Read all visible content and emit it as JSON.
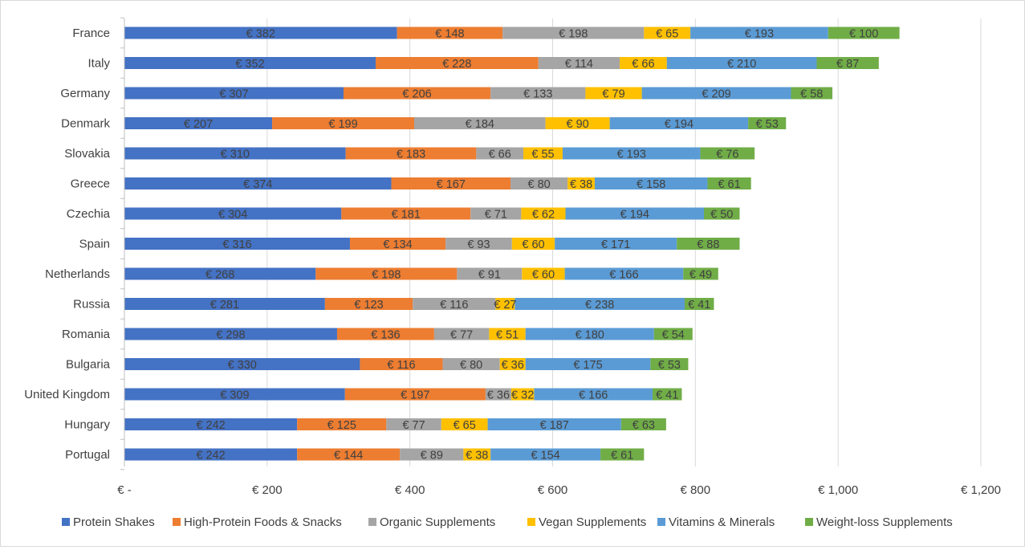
{
  "chart_data": {
    "type": "bar",
    "orientation": "horizontal",
    "stacked": true,
    "title": "",
    "xlabel": "",
    "ylabel": "",
    "categories": [
      "France",
      "Italy",
      "Germany",
      "Denmark",
      "Slovakia",
      "Greece",
      "Czechia",
      "Spain",
      "Netherlands",
      "Russia",
      "Romania",
      "Bulgaria",
      "United Kingdom",
      "Hungary",
      "Portugal"
    ],
    "series": [
      {
        "name": "Protein Shakes",
        "color": "#4472c4",
        "values": [
          382,
          352,
          307,
          207,
          310,
          374,
          304,
          316,
          268,
          281,
          298,
          330,
          309,
          242,
          242
        ]
      },
      {
        "name": "High-Protein Foods & Snacks",
        "color": "#ed7d31",
        "values": [
          148,
          228,
          206,
          199,
          183,
          167,
          181,
          134,
          198,
          123,
          136,
          116,
          197,
          125,
          144
        ]
      },
      {
        "name": "Organic Supplements",
        "color": "#a5a5a5",
        "values": [
          198,
          114,
          133,
          184,
          66,
          80,
          71,
          93,
          91,
          116,
          77,
          80,
          36,
          77,
          89
        ]
      },
      {
        "name": "Vegan Supplements",
        "color": "#ffc000",
        "values": [
          65,
          66,
          79,
          90,
          55,
          38,
          62,
          60,
          60,
          27,
          51,
          36,
          32,
          65,
          38
        ]
      },
      {
        "name": "Vitamins & Minerals",
        "color": "#5b9bd5",
        "values": [
          193,
          210,
          209,
          194,
          193,
          158,
          194,
          171,
          166,
          238,
          180,
          175,
          166,
          187,
          154
        ]
      },
      {
        "name": "Weight-loss Supplements",
        "color": "#70ad47",
        "values": [
          100,
          87,
          58,
          53,
          76,
          61,
          50,
          88,
          49,
          41,
          54,
          53,
          41,
          63,
          61
        ]
      }
    ],
    "xlim": [
      0,
      1200
    ],
    "x_ticks": [
      0,
      200,
      400,
      600,
      800,
      1000,
      1200
    ],
    "x_tick_labels": [
      "€ -",
      "€ 200",
      "€ 400",
      "€ 600",
      "€ 800",
      "€ 1,000",
      "€ 1,200"
    ],
    "value_prefix": "€ ",
    "grid": true,
    "legend_position": "bottom"
  }
}
